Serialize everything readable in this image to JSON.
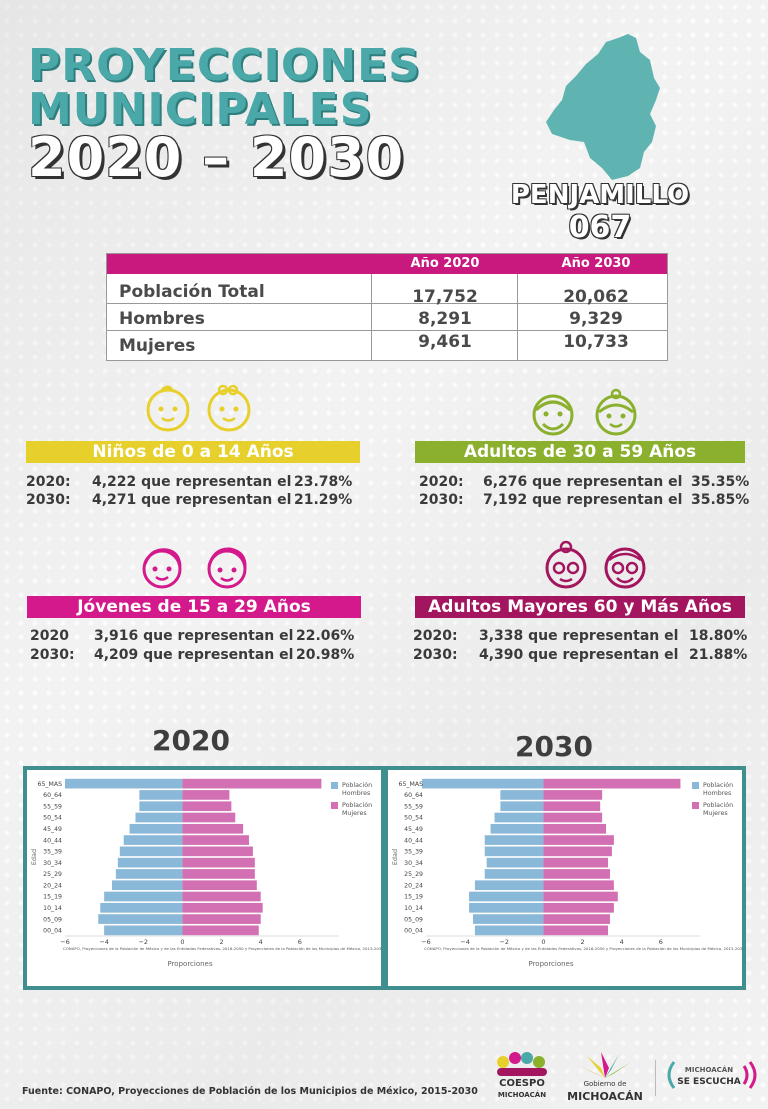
{
  "title": {
    "line1": "PROYECCIONES",
    "line2": "MUNICIPALES",
    "line3": "2020 – 2030"
  },
  "municipality": {
    "name": "PENJAMILLO",
    "code": "067"
  },
  "summary": {
    "col1": "Año 2020",
    "col2": "Año 2030",
    "rows": [
      {
        "label": "Población Total",
        "y2020": "17,752",
        "y2030": "20,062"
      },
      {
        "label": "Hombres",
        "y2020": "8,291",
        "y2030": "9,329"
      },
      {
        "label": "Mujeres",
        "y2020": "9,461",
        "y2030": "10,733"
      }
    ]
  },
  "groups": {
    "ninos": {
      "title": "Niños de 0 a 14 Años",
      "color": "#e7d02c",
      "l2020": {
        "year": "2020:",
        "text": "4,222 que representan el",
        "pct": "23.78%"
      },
      "l2030": {
        "year": "2030:",
        "text": "4,271 que representan el",
        "pct": "21.29%"
      }
    },
    "adultos": {
      "title": "Adultos de 30 a 59 Años",
      "color": "#8ab02d",
      "l2020": {
        "year": "2020:",
        "text": "6,276 que representan el",
        "pct": "35.35%"
      },
      "l2030": {
        "year": "2030:",
        "text": "7,192 que representan el",
        "pct": "35.85%"
      }
    },
    "jovenes": {
      "title": "Jóvenes de 15 a 29 Años",
      "color": "#d3198b",
      "l2020": {
        "year": "2020",
        "text": "3,916 que representan el",
        "pct": "22.06%"
      },
      "l2030": {
        "year": "2030:",
        "text": "4,209 que representan el",
        "pct": "20.98%"
      }
    },
    "mayores": {
      "title": "Adultos Mayores  60 y Más Años",
      "color": "#a3155e",
      "l2020": {
        "year": "2020:",
        "text": "3,338 que representan el",
        "pct": "18.80%"
      },
      "l2030": {
        "year": "2030:",
        "text": "4,390 que representan el",
        "pct": "21.88%"
      }
    }
  },
  "chart_data": [
    {
      "type": "bar",
      "orientation": "horizontal",
      "title": "2020",
      "categories": [
        "00_04",
        "05_09",
        "10_14",
        "15_19",
        "20_24",
        "25_29",
        "30_34",
        "35_39",
        "40_44",
        "45_49",
        "50_54",
        "55_59",
        "60_64",
        "65_MAS"
      ],
      "series": [
        {
          "name": "Población Hombres",
          "color": "#8ab8d8",
          "values": [
            -4.0,
            -4.3,
            -4.2,
            -4.0,
            -3.6,
            -3.4,
            -3.3,
            -3.2,
            -3.0,
            -2.7,
            -2.4,
            -2.2,
            -2.2,
            -6.0
          ]
        },
        {
          "name": "Población Mujeres",
          "color": "#d36fb3",
          "values": [
            3.9,
            4.0,
            4.1,
            4.0,
            3.8,
            3.7,
            3.7,
            3.6,
            3.4,
            3.1,
            2.7,
            2.5,
            2.4,
            7.1
          ]
        }
      ],
      "xlabel": "Proporciones",
      "ylabel": "Edad",
      "xticks": [
        "−6",
        "−4",
        "−2",
        "0",
        "2",
        "4",
        "6"
      ],
      "xlim": [
        -6,
        8
      ],
      "note": "CONAPO, Proyecciones de la Población de México y de las Entidades Federativas, 2016-2050 y Proyecciones de la Población de los Municipios de México, 2015-2030."
    },
    {
      "type": "bar",
      "orientation": "horizontal",
      "title": "2030",
      "categories": [
        "00_04",
        "05_09",
        "10_14",
        "15_19",
        "20_24",
        "25_29",
        "30_34",
        "35_39",
        "40_44",
        "45_49",
        "50_54",
        "55_59",
        "60_64",
        "65_MAS"
      ],
      "series": [
        {
          "name": "Población Hombres",
          "color": "#8ab8d8",
          "values": [
            -3.5,
            -3.6,
            -3.8,
            -3.8,
            -3.5,
            -3.0,
            -2.9,
            -3.0,
            -3.0,
            -2.7,
            -2.5,
            -2.2,
            -2.2,
            -6.2
          ]
        },
        {
          "name": "Población Mujeres",
          "color": "#d36fb3",
          "values": [
            3.3,
            3.4,
            3.6,
            3.8,
            3.6,
            3.4,
            3.3,
            3.5,
            3.6,
            3.2,
            3.0,
            2.9,
            3.0,
            7.0
          ]
        }
      ],
      "xlabel": "Proporciones",
      "ylabel": "Edad",
      "xticks": [
        "−6",
        "−4",
        "−2",
        "0",
        "2",
        "4",
        "6"
      ],
      "xlim": [
        -6,
        8
      ],
      "note": "CONAPO, Proyecciones de la Población de México y de las Entidades Federativas, 2016-2050 y Proyecciones de la Población de los Municipios de México, 2015-2030."
    }
  ],
  "footer": {
    "source": "Fuente: CONAPO, Proyecciones de Población de los Municipios de México, 2015-2030",
    "logo1_top": "COESPO",
    "logo1_bottom": "MICHOACÁN",
    "logo2_top": "Gobierno de",
    "logo2_bottom": "MICHOACÁN",
    "logo3_top": "MICHOACÁN",
    "logo3_bottom": "SE ESCUCHA"
  }
}
